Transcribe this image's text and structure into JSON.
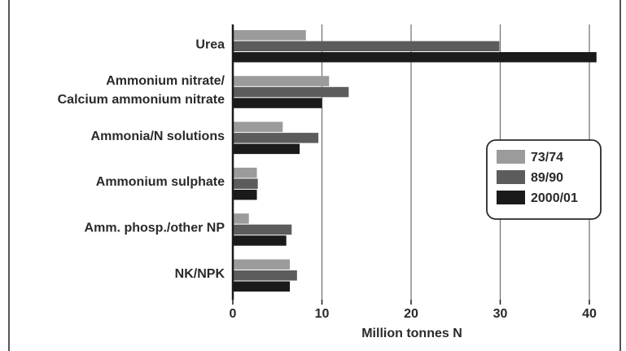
{
  "chart_data": {
    "type": "bar",
    "orientation": "horizontal",
    "categories": [
      [
        "Urea"
      ],
      [
        "Ammonium nitrate/",
        "Calcium ammonium nitrate"
      ],
      [
        "Ammonia/N solutions"
      ],
      [
        "Ammonium sulphate"
      ],
      [
        "Amm. phosp./other NP"
      ],
      [
        "NK/NPK"
      ]
    ],
    "series": [
      {
        "name": "73/74",
        "color": "#9b9b9b",
        "values": [
          8.2,
          10.8,
          5.6,
          2.7,
          1.8,
          6.4
        ]
      },
      {
        "name": "89/90",
        "color": "#5c5c5c",
        "values": [
          29.9,
          13.0,
          9.6,
          2.8,
          6.6,
          7.2
        ]
      },
      {
        "name": "2000/01",
        "color": "#1a1a1a",
        "values": [
          40.8,
          10.0,
          7.5,
          2.7,
          6.0,
          6.4
        ]
      }
    ],
    "xlabel": "Million tonnes N",
    "ylabel": "",
    "title": "",
    "xlim": [
      0,
      42
    ],
    "xticks": [
      0,
      10,
      20,
      30,
      40
    ],
    "grid": "vertical",
    "legend_position": "right"
  }
}
